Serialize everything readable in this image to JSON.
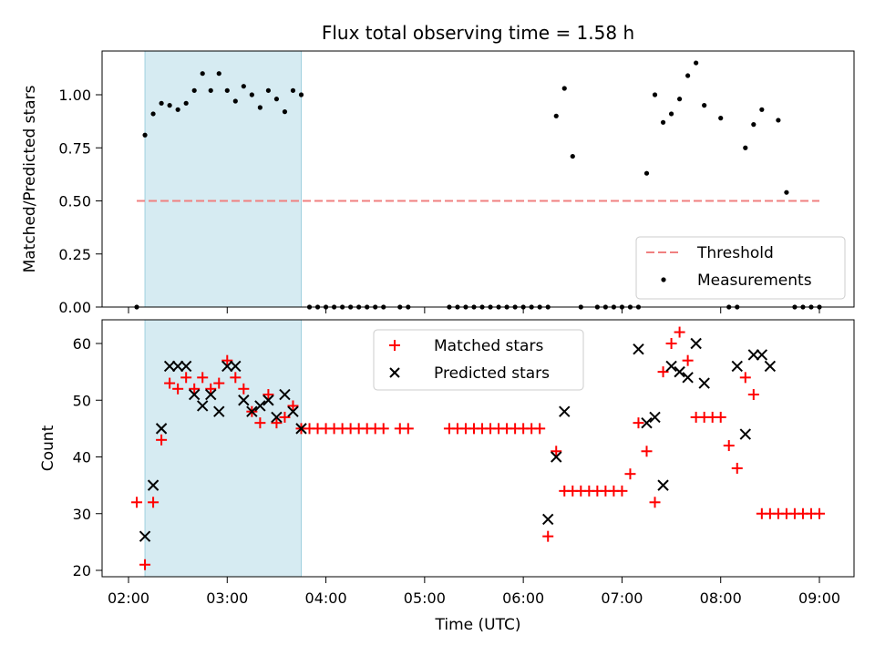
{
  "title": "Flux total observing time = 1.58 h",
  "colors": {
    "threshold": "#f08080",
    "measurement": "#000000",
    "matched": "#ff0000",
    "predicted": "#000000",
    "highlight": "#add8e6"
  },
  "chart_data": [
    {
      "type": "scatter",
      "name": "ratio-panel",
      "ylabel": "Matched/Predicted stars",
      "xlabel": "",
      "ylim": [
        0,
        1.2
      ],
      "yticks": [
        0.0,
        0.25,
        0.5,
        0.75,
        1.0
      ],
      "ytick_labels": [
        "0.00",
        "0.25",
        "0.50",
        "0.75",
        "1.00"
      ],
      "grid": false,
      "legend": "bottom-right",
      "highlight_span": [
        "02:10",
        "03:45"
      ],
      "threshold": {
        "name": "Threshold",
        "y": 0.5,
        "x": [
          "02:05",
          "09:00"
        ]
      },
      "series": [
        {
          "name": "Measurements",
          "marker": "dot",
          "x": [
            "02:05",
            "02:10",
            "02:15",
            "02:20",
            "02:25",
            "02:30",
            "02:35",
            "02:40",
            "02:45",
            "02:50",
            "02:55",
            "03:00",
            "03:05",
            "03:10",
            "03:15",
            "03:20",
            "03:25",
            "03:30",
            "03:35",
            "03:40",
            "03:45",
            "03:50",
            "03:55",
            "04:00",
            "04:05",
            "04:10",
            "04:15",
            "04:20",
            "04:25",
            "04:30",
            "04:35",
            "04:45",
            "04:50",
            "05:15",
            "05:20",
            "05:25",
            "05:30",
            "05:35",
            "05:40",
            "05:45",
            "05:50",
            "05:55",
            "06:00",
            "06:05",
            "06:10",
            "06:15",
            "06:20",
            "06:25",
            "06:30",
            "06:35",
            "06:45",
            "06:50",
            "06:55",
            "07:00",
            "07:05",
            "07:10",
            "07:15",
            "07:20",
            "07:25",
            "07:30",
            "07:35",
            "07:40",
            "07:45",
            "07:50",
            "08:00",
            "08:05",
            "08:10",
            "08:15",
            "08:20",
            "08:25",
            "08:35",
            "08:40",
            "08:45",
            "08:50",
            "08:55",
            "09:00"
          ],
          "y": [
            0.0,
            0.81,
            0.91,
            0.96,
            0.95,
            0.93,
            0.96,
            1.02,
            1.1,
            1.02,
            1.1,
            1.02,
            0.97,
            1.04,
            1.0,
            0.94,
            1.02,
            0.98,
            0.92,
            1.02,
            1.0,
            0.0,
            0.0,
            0.0,
            0.0,
            0.0,
            0.0,
            0.0,
            0.0,
            0.0,
            0.0,
            0.0,
            0.0,
            0.0,
            0.0,
            0.0,
            0.0,
            0.0,
            0.0,
            0.0,
            0.0,
            0.0,
            0.0,
            0.0,
            0.0,
            0.0,
            0.9,
            1.03,
            0.71,
            0.0,
            0.0,
            0.0,
            0.0,
            0.0,
            0.0,
            0.0,
            0.63,
            1.0,
            0.87,
            0.91,
            0.98,
            1.09,
            1.15,
            0.95,
            0.89,
            0.0,
            0.0,
            0.75,
            0.86,
            0.93,
            0.88,
            0.54,
            0.0,
            0.0,
            0.0,
            0.0
          ]
        }
      ]
    },
    {
      "type": "scatter",
      "name": "count-panel",
      "ylabel": "Count",
      "xlabel": "Time (UTC)",
      "ylim": [
        19.5,
        64.5
      ],
      "yticks": [
        20,
        30,
        40,
        50,
        60
      ],
      "xticks": [
        "02:00",
        "03:00",
        "04:00",
        "05:00",
        "06:00",
        "07:00",
        "08:00",
        "09:00"
      ],
      "grid": false,
      "legend": "top-center",
      "highlight_span": [
        "02:10",
        "03:45"
      ],
      "series": [
        {
          "name": "Matched stars",
          "marker": "plus",
          "x": [
            "02:05",
            "02:10",
            "02:15",
            "02:20",
            "02:25",
            "02:30",
            "02:35",
            "02:40",
            "02:45",
            "02:50",
            "02:55",
            "03:00",
            "03:05",
            "03:10",
            "03:15",
            "03:20",
            "03:25",
            "03:30",
            "03:35",
            "03:40",
            "03:45",
            "03:50",
            "03:55",
            "04:00",
            "04:05",
            "04:10",
            "04:15",
            "04:20",
            "04:25",
            "04:30",
            "04:35",
            "04:45",
            "04:50",
            "05:15",
            "05:20",
            "05:25",
            "05:30",
            "05:35",
            "05:40",
            "05:45",
            "05:50",
            "05:55",
            "06:00",
            "06:05",
            "06:10",
            "06:15",
            "06:20",
            "06:25",
            "06:30",
            "06:35",
            "06:40",
            "06:45",
            "06:50",
            "06:55",
            "07:00",
            "07:05",
            "07:10",
            "07:15",
            "07:20",
            "07:25",
            "07:30",
            "07:35",
            "07:40",
            "07:45",
            "07:50",
            "07:55",
            "08:00",
            "08:05",
            "08:10",
            "08:15",
            "08:20",
            "08:25",
            "08:30",
            "08:35",
            "08:40",
            "08:45",
            "08:50",
            "08:55",
            "09:00"
          ],
          "y": [
            32,
            21,
            32,
            43,
            53,
            52,
            54,
            52,
            54,
            52,
            53,
            57,
            54,
            52,
            48,
            46,
            51,
            46,
            47,
            49,
            45,
            45,
            45,
            45,
            45,
            45,
            45,
            45,
            45,
            45,
            45,
            45,
            45,
            45,
            45,
            45,
            45,
            45,
            45,
            45,
            45,
            45,
            45,
            45,
            45,
            26,
            41,
            34,
            34,
            34,
            34,
            34,
            34,
            34,
            34,
            37,
            46,
            41,
            32,
            55,
            60,
            62,
            57,
            47,
            47,
            47,
            47,
            42,
            38,
            54,
            51,
            30,
            30,
            30,
            30,
            30,
            30,
            30,
            30
          ]
        },
        {
          "name": "Predicted stars",
          "marker": "x",
          "x": [
            "02:10",
            "02:15",
            "02:20",
            "02:25",
            "02:30",
            "02:35",
            "02:40",
            "02:45",
            "02:50",
            "02:55",
            "03:00",
            "03:05",
            "03:10",
            "03:15",
            "03:20",
            "03:25",
            "03:30",
            "03:35",
            "03:40",
            "03:45",
            "06:15",
            "06:20",
            "06:25",
            "07:10",
            "07:15",
            "07:20",
            "07:25",
            "07:30",
            "07:35",
            "07:40",
            "07:45",
            "07:50",
            "08:10",
            "08:15",
            "08:20",
            "08:25",
            "08:30"
          ],
          "y": [
            26,
            35,
            45,
            56,
            56,
            56,
            51,
            49,
            51,
            48,
            56,
            56,
            50,
            48,
            49,
            50,
            47,
            51,
            48,
            45,
            29,
            40,
            48,
            59,
            46,
            47,
            35,
            56,
            55,
            54,
            60,
            53,
            56,
            44,
            58,
            58,
            56
          ]
        }
      ]
    }
  ]
}
